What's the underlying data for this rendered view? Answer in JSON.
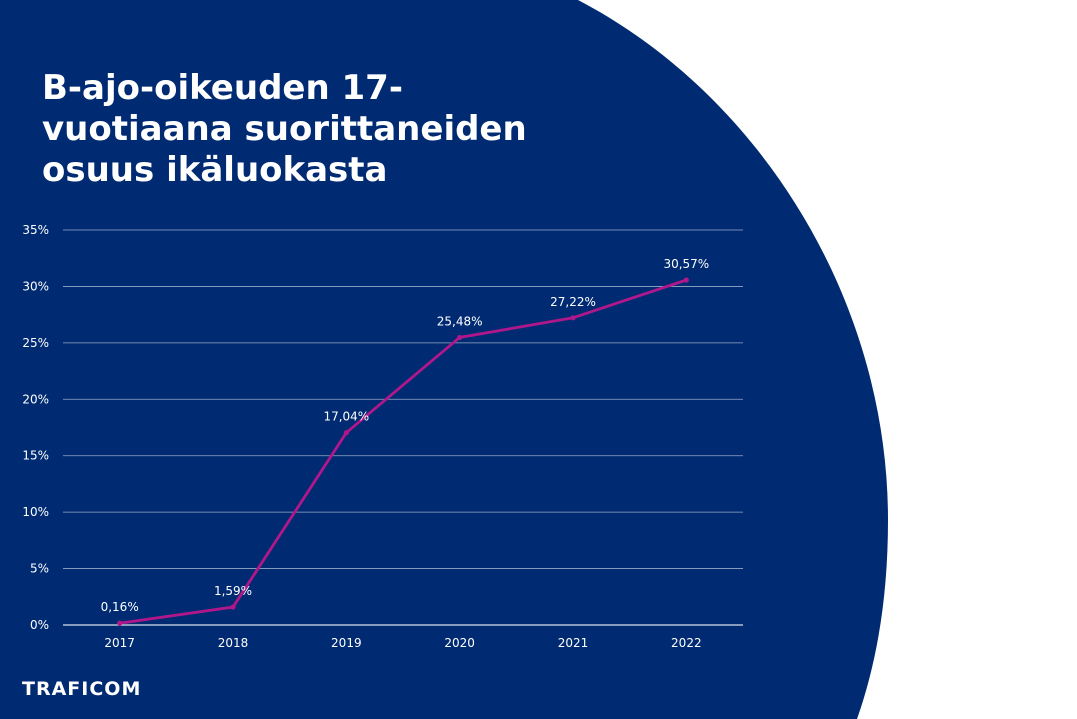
{
  "slide": {
    "title_lines": [
      "B-ajo-oikeuden 17-",
      "vuotiaana suorittaneiden",
      "osuus ikäluokasta"
    ],
    "logo_text": "TRAFICOM",
    "colors": {
      "background": "#002b72",
      "page": "#ffffff",
      "line": "#b0178a",
      "text": "#ffffff",
      "gridline": "#ffffff"
    }
  },
  "chart_data": {
    "type": "line",
    "categories": [
      "2017",
      "2018",
      "2019",
      "2020",
      "2021",
      "2022"
    ],
    "series": [
      {
        "values": [
          0.16,
          1.59,
          17.04,
          25.48,
          27.22,
          30.57
        ],
        "labels": [
          "0,16%",
          "1,59%",
          "17,04%",
          "25,48%",
          "27,22%",
          "30,57%"
        ]
      }
    ],
    "y_ticks": [
      {
        "value": 0,
        "label": "0%"
      },
      {
        "value": 5,
        "label": "5%"
      },
      {
        "value": 10,
        "label": "10%"
      },
      {
        "value": 15,
        "label": "15%"
      },
      {
        "value": 20,
        "label": "20%"
      },
      {
        "value": 25,
        "label": "25%"
      },
      {
        "value": 30,
        "label": "30%"
      },
      {
        "value": 35,
        "label": "35%"
      }
    ],
    "ylim": [
      0,
      35
    ],
    "grid": true,
    "legend": "none",
    "markers": true
  }
}
